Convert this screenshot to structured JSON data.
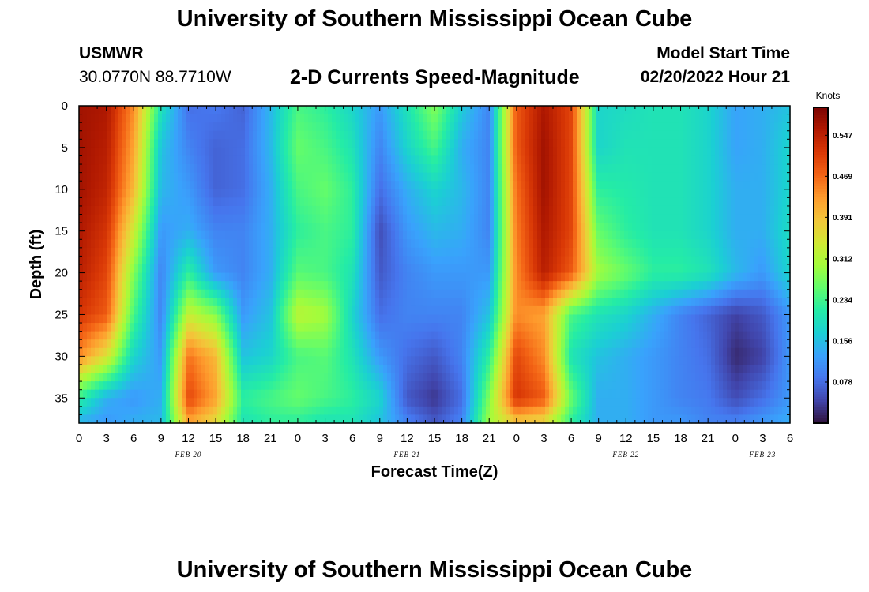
{
  "header": {
    "title": "University of Southern Mississippi Ocean Cube",
    "station": "USMWR",
    "coords": "30.0770N  88.7710W",
    "plot_title": "2-D Currents Speed-Magnitude",
    "model_label": "Model Start Time",
    "model_time": "02/20/2022 Hour 21"
  },
  "footer": {
    "title": "University of Southern Mississippi Ocean Cube"
  },
  "colors": {
    "palette": [
      "#30123b",
      "#4145ab",
      "#4675ed",
      "#39a2fc",
      "#1bcfd4",
      "#24eca6",
      "#61fc6c",
      "#a4fc3b",
      "#d1e834",
      "#f3c63a",
      "#fe9b2d",
      "#f36315",
      "#d93806",
      "#b11901",
      "#7a0402"
    ]
  },
  "chart_data": {
    "type": "heatmap",
    "title": "2-D Currents Speed-Magnitude",
    "xlabel": "Forecast Time(Z)",
    "ylabel": "Depth (ft)",
    "x_hours": [
      0,
      3,
      6,
      9,
      12,
      15,
      18,
      21,
      24,
      27,
      30,
      33,
      36,
      39,
      42,
      45,
      48,
      51,
      54,
      57,
      60,
      63,
      66,
      69,
      72,
      75,
      78
    ],
    "x_tick_labels": [
      "0",
      "3",
      "6",
      "9",
      "12",
      "15",
      "18",
      "21",
      "0",
      "3",
      "6",
      "9",
      "12",
      "15",
      "18",
      "21",
      "0",
      "3",
      "6",
      "9",
      "12",
      "15",
      "18",
      "21",
      "0",
      "3",
      "6"
    ],
    "date_labels": [
      {
        "label": "FEB 20",
        "hour": 12
      },
      {
        "label": "FEB 21",
        "hour": 36
      },
      {
        "label": "FEB 22",
        "hour": 60
      },
      {
        "label": "FEB 23",
        "hour": 75
      }
    ],
    "y_ticks": [
      0,
      5,
      10,
      15,
      20,
      25,
      30,
      35
    ],
    "ylim": [
      0,
      38
    ],
    "xlim": [
      0,
      78
    ],
    "depths_ft": [
      0,
      5,
      10,
      15,
      20,
      25,
      30,
      35,
      38
    ],
    "times_hr": [
      0,
      3,
      6,
      9,
      12,
      15,
      18,
      21,
      24,
      27,
      30,
      33,
      36,
      39,
      42,
      45,
      48,
      51,
      54,
      57,
      60,
      63,
      66,
      69,
      72,
      75,
      78
    ],
    "speed_knots": [
      [
        0.57,
        0.56,
        0.44,
        0.2,
        0.08,
        0.09,
        0.07,
        0.15,
        0.24,
        0.22,
        0.18,
        0.12,
        0.2,
        0.28,
        0.17,
        0.1,
        0.48,
        0.56,
        0.5,
        0.18,
        0.19,
        0.2,
        0.2,
        0.18,
        0.13,
        0.14,
        0.16
      ],
      [
        0.57,
        0.55,
        0.42,
        0.16,
        0.1,
        0.07,
        0.08,
        0.15,
        0.26,
        0.24,
        0.2,
        0.1,
        0.18,
        0.24,
        0.14,
        0.1,
        0.48,
        0.57,
        0.5,
        0.18,
        0.2,
        0.2,
        0.2,
        0.18,
        0.13,
        0.14,
        0.18
      ],
      [
        0.57,
        0.54,
        0.4,
        0.15,
        0.12,
        0.07,
        0.08,
        0.14,
        0.24,
        0.26,
        0.22,
        0.08,
        0.14,
        0.18,
        0.15,
        0.1,
        0.46,
        0.57,
        0.5,
        0.22,
        0.21,
        0.2,
        0.2,
        0.18,
        0.14,
        0.14,
        0.18
      ],
      [
        0.56,
        0.52,
        0.34,
        0.12,
        0.14,
        0.1,
        0.1,
        0.14,
        0.22,
        0.24,
        0.22,
        0.05,
        0.12,
        0.15,
        0.14,
        0.1,
        0.45,
        0.56,
        0.5,
        0.26,
        0.22,
        0.2,
        0.2,
        0.18,
        0.14,
        0.14,
        0.19
      ],
      [
        0.55,
        0.5,
        0.28,
        0.1,
        0.22,
        0.12,
        0.1,
        0.14,
        0.25,
        0.24,
        0.2,
        0.06,
        0.1,
        0.12,
        0.12,
        0.12,
        0.44,
        0.55,
        0.48,
        0.3,
        0.26,
        0.22,
        0.22,
        0.2,
        0.15,
        0.12,
        0.18
      ],
      [
        0.52,
        0.48,
        0.24,
        0.1,
        0.33,
        0.28,
        0.12,
        0.16,
        0.32,
        0.3,
        0.18,
        0.08,
        0.1,
        0.1,
        0.1,
        0.16,
        0.44,
        0.42,
        0.24,
        0.2,
        0.18,
        0.14,
        0.1,
        0.07,
        0.04,
        0.06,
        0.12
      ],
      [
        0.44,
        0.35,
        0.18,
        0.12,
        0.46,
        0.4,
        0.16,
        0.18,
        0.24,
        0.25,
        0.2,
        0.12,
        0.08,
        0.06,
        0.1,
        0.22,
        0.5,
        0.44,
        0.2,
        0.16,
        0.14,
        0.12,
        0.1,
        0.08,
        0.02,
        0.04,
        0.12
      ],
      [
        0.22,
        0.14,
        0.12,
        0.14,
        0.5,
        0.42,
        0.22,
        0.24,
        0.26,
        0.24,
        0.22,
        0.18,
        0.06,
        0.03,
        0.08,
        0.28,
        0.52,
        0.48,
        0.26,
        0.14,
        0.14,
        0.12,
        0.1,
        0.09,
        0.05,
        0.08,
        0.12
      ],
      [
        0.14,
        0.12,
        0.14,
        0.15,
        0.42,
        0.36,
        0.2,
        0.22,
        0.22,
        0.2,
        0.2,
        0.16,
        0.1,
        0.06,
        0.1,
        0.3,
        0.38,
        0.36,
        0.22,
        0.14,
        0.14,
        0.12,
        0.12,
        0.1,
        0.1,
        0.12,
        0.14
      ]
    ],
    "colorbar": {
      "label": "Knots",
      "min": 0,
      "max": 0.6,
      "ticks": [
        "0.547",
        "0.469",
        "0.391",
        "0.312",
        "0.234",
        "0.156",
        "0.078"
      ]
    }
  }
}
